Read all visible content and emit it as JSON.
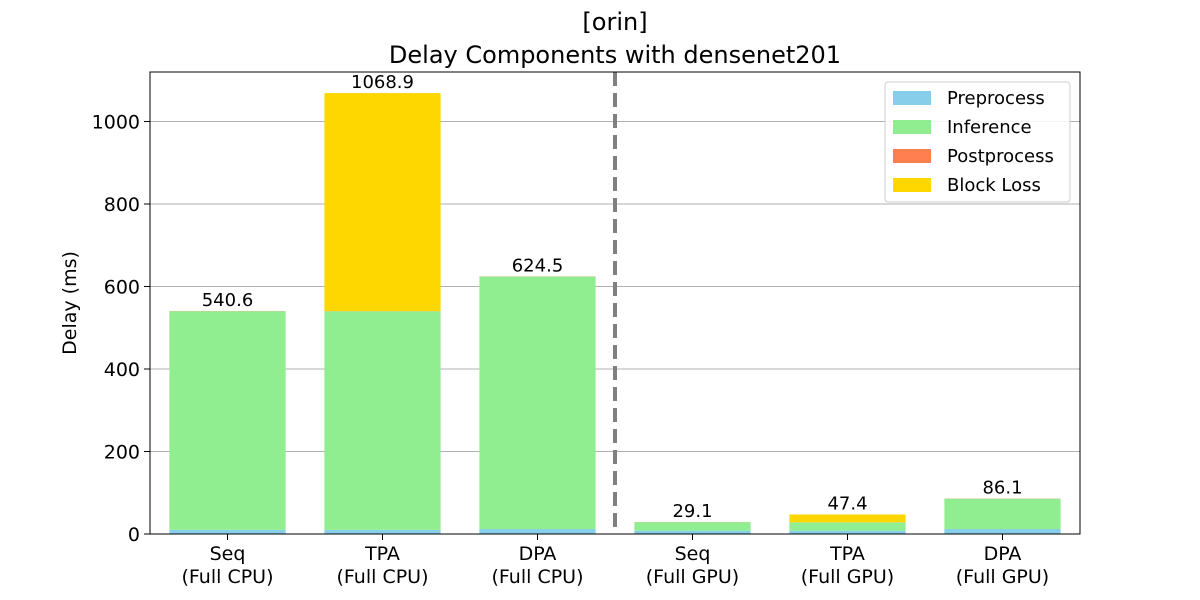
{
  "chart_data": {
    "type": "bar",
    "stacked": true,
    "title": [
      "[orin]",
      "Delay Components with densenet201"
    ],
    "xlabel": "",
    "ylabel": "Delay (ms)",
    "ylim": [
      0,
      1120
    ],
    "yticks": [
      0,
      200,
      400,
      600,
      800,
      1000
    ],
    "grid": "y",
    "legend_position": "top-right",
    "categories": [
      [
        "Seq",
        "(Full CPU)"
      ],
      [
        "TPA",
        "(Full CPU)"
      ],
      [
        "DPA",
        "(Full CPU)"
      ],
      [
        "Seq",
        "(Full GPU)"
      ],
      [
        "TPA",
        "(Full GPU)"
      ],
      [
        "DPA",
        "(Full GPU)"
      ]
    ],
    "series": [
      {
        "name": "Preprocess",
        "color": "#87CEEB",
        "values": [
          10,
          10,
          12,
          8,
          8,
          12
        ]
      },
      {
        "name": "Inference",
        "color": "#90EE90",
        "values": [
          530.2,
          530,
          612.1,
          20.8,
          20,
          73.7
        ]
      },
      {
        "name": "Postprocess",
        "color": "#FF7F50",
        "values": [
          0.4,
          0.4,
          0.4,
          0.3,
          0.3,
          0.4
        ]
      },
      {
        "name": "Block Loss",
        "color": "#FFD700",
        "values": [
          0,
          528.5,
          0,
          0,
          19.1,
          0
        ]
      }
    ],
    "totals": [
      "540.6",
      "1068.9",
      "624.5",
      "29.1",
      "47.4",
      "86.1"
    ],
    "separator": {
      "after_category_index": 2,
      "style": "dashed",
      "color": "#808080"
    }
  }
}
